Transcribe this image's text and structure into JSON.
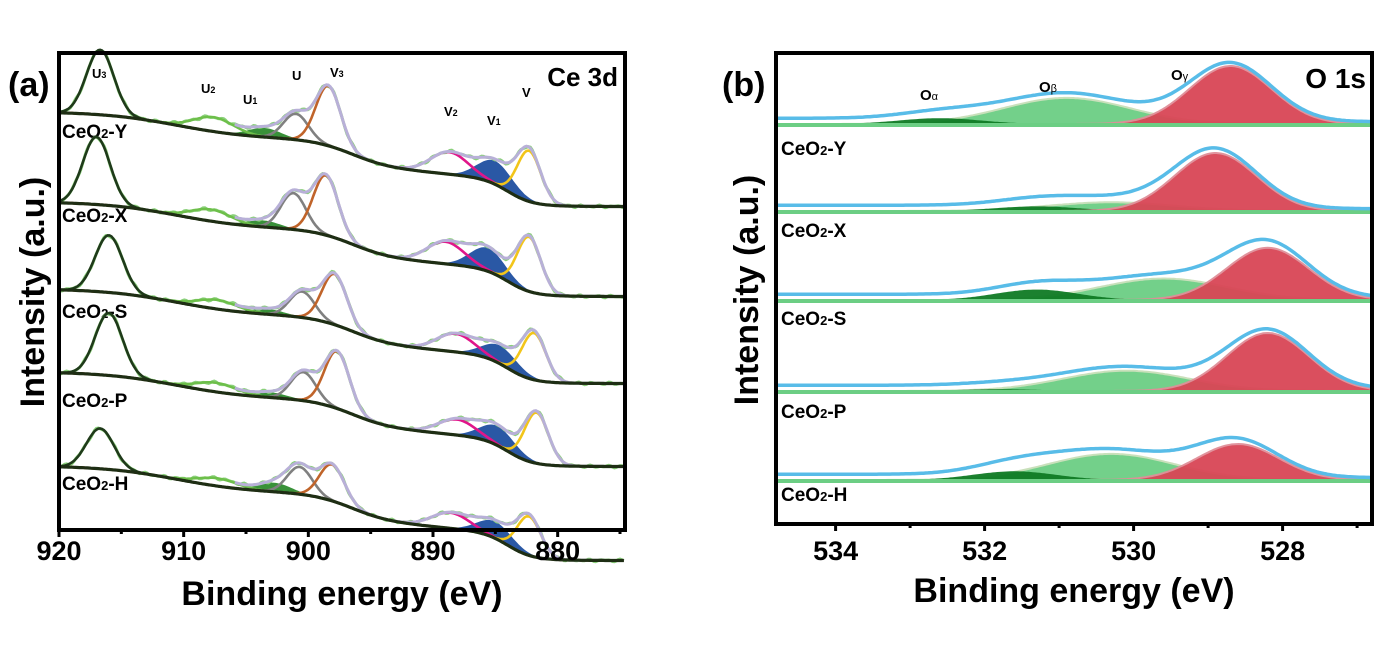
{
  "chart_data": [
    {
      "type": "line",
      "panel_label": "(a)",
      "title": "Ce 3d",
      "xlabel": "Binding energy (eV)",
      "ylabel": "Intensity (a.u.)",
      "xlim": [
        920,
        874.6
      ],
      "x_reversed": true,
      "xticks": [
        920,
        910,
        900,
        890,
        880
      ],
      "minor_xticks": [
        915,
        905,
        895,
        885,
        875
      ],
      "grid": false,
      "legend": "none",
      "peak_labels": [
        {
          "text": "U",
          "sub": "3",
          "x": 916.6
        },
        {
          "text": "U",
          "sub": "2",
          "x": 907.8
        },
        {
          "text": "U",
          "sub": "1",
          "x": 903.6
        },
        {
          "text": "U",
          "sub": "",
          "x": 901.0
        },
        {
          "text": "V",
          "sub": "3",
          "x": 898.3
        },
        {
          "text": "V",
          "sub": "2",
          "x": 888.6
        },
        {
          "text": "V",
          "sub": "1",
          "x": 885.0
        },
        {
          "text": "V",
          "sub": "",
          "x": 882.4
        }
      ],
      "component_colors": {
        "U3": "#1f3a1a",
        "U2": "#6dbf4a",
        "U1": "#2e8b2e",
        "U": "#808080",
        "V3": "#c0642a",
        "V2": "#e0168a",
        "V1": "#1f4fa0",
        "V": "#f2c51a",
        "envelope": "#b8b0d8",
        "raw": "#8ad07a",
        "background": "#1e2e14"
      },
      "series": [
        {
          "name": "CeO2-Y",
          "offset": 4,
          "peaks": {
            "U3": [
              916.7,
              2.5
            ],
            "U2": [
              907.6,
              0.55
            ],
            "U1": [
              903.5,
              0.35
            ],
            "U": [
              901.0,
              1.0
            ],
            "V3": [
              898.4,
              2.3
            ],
            "V2": [
              888.7,
              0.85
            ],
            "V1": [
              885.0,
              0.9
            ],
            "V": [
              882.3,
              1.95
            ]
          }
        },
        {
          "name": "CeO2-X",
          "offset": 3,
          "peaks": {
            "U3": [
              917.0,
              2.6
            ],
            "U2": [
              907.8,
              0.45
            ],
            "U1": [
              903.6,
              0.25
            ],
            "U": [
              901.2,
              1.4
            ],
            "V3": [
              898.6,
              2.3
            ],
            "V2": [
              889.0,
              0.85
            ],
            "V1": [
              885.6,
              0.9
            ],
            "V": [
              882.3,
              2.1
            ]
          }
        },
        {
          "name": "CeO2-S",
          "offset": 2,
          "peaks": {
            "U3": [
              916.0,
              2.2
            ],
            "U2": [
              907.3,
              0.35
            ],
            "U1": [
              903.2,
              0.2
            ],
            "U": [
              900.5,
              1.0
            ],
            "V3": [
              897.9,
              1.95
            ],
            "V2": [
              888.2,
              0.7
            ],
            "V1": [
              884.6,
              0.7
            ],
            "V": [
              881.9,
              1.8
            ]
          }
        },
        {
          "name": "CeO2-P",
          "offset": 1,
          "peaks": {
            "U3": [
              916.0,
              2.4
            ],
            "U2": [
              907.4,
              0.35
            ],
            "U1": [
              903.0,
              0.2
            ],
            "U": [
              900.4,
              1.1
            ],
            "V3": [
              897.7,
              2.2
            ],
            "V2": [
              888.1,
              0.6
            ],
            "V1": [
              884.8,
              0.75
            ],
            "V": [
              881.7,
              1.95
            ]
          }
        },
        {
          "name": "CeO2-H",
          "offset": 0,
          "peaks": {
            "U3": [
              916.7,
              1.55
            ],
            "U2": [
              907.3,
              0.3
            ],
            "U1": [
              902.7,
              0.35
            ],
            "U": [
              900.7,
              1.05
            ],
            "V3": [
              898.1,
              1.4
            ],
            "V2": [
              888.6,
              0.6
            ],
            "V1": [
              885.0,
              0.65
            ],
            "V": [
              882.3,
              1.5
            ]
          }
        }
      ]
    },
    {
      "type": "area",
      "panel_label": "(b)",
      "title": "O 1s",
      "xlabel": "Binding energy (eV)",
      "ylabel": "Intensity (a.u.)",
      "xlim": [
        534.8,
        526.8
      ],
      "x_reversed": true,
      "xticks": [
        534,
        532,
        530,
        528
      ],
      "minor_xticks": [
        533,
        531,
        529,
        527
      ],
      "grid": false,
      "legend": "none",
      "peak_labels": [
        {
          "text": "O",
          "sub": "α",
          "x": 532.7
        },
        {
          "text": "O",
          "sub": "β",
          "x": 531.0
        },
        {
          "text": "O",
          "sub": "γ",
          "x": 529.0
        }
      ],
      "component_colors": {
        "O_alpha": "#0f7a24",
        "O_beta": "#6cce84",
        "O_gamma": "#d94656",
        "envelope": "#58bce8",
        "baseline": "#6cce84"
      },
      "series": [
        {
          "name": "CeO2-Y",
          "offset": 4,
          "peaks": {
            "O_alpha": [
              532.6,
              0.1
            ],
            "O_beta": [
              530.9,
              0.45
            ],
            "O_gamma": [
              528.7,
              1.0
            ]
          }
        },
        {
          "name": "CeO2-X",
          "offset": 3,
          "peaks": {
            "O_alpha": [
              531.3,
              0.08
            ],
            "O_beta": [
              530.3,
              0.15
            ],
            "O_gamma": [
              528.9,
              1.0
            ]
          }
        },
        {
          "name": "CeO2-S",
          "offset": 2,
          "peaks": {
            "O_alpha": [
              531.3,
              0.18
            ],
            "O_beta": [
              529.6,
              0.37
            ],
            "O_gamma": [
              528.2,
              0.9
            ]
          }
        },
        {
          "name": "CeO2-P",
          "offset": 1,
          "peaks": {
            "O_alpha": [
              531.8,
              0.03
            ],
            "O_beta": [
              530.1,
              0.35
            ],
            "O_gamma": [
              528.2,
              1.0
            ]
          }
        },
        {
          "name": "CeO2-H",
          "offset": 0,
          "peaks": {
            "O_alpha": [
              531.6,
              0.15
            ],
            "O_beta": [
              530.3,
              0.45
            ],
            "O_gamma": [
              528.6,
              0.62
            ]
          }
        }
      ]
    }
  ]
}
